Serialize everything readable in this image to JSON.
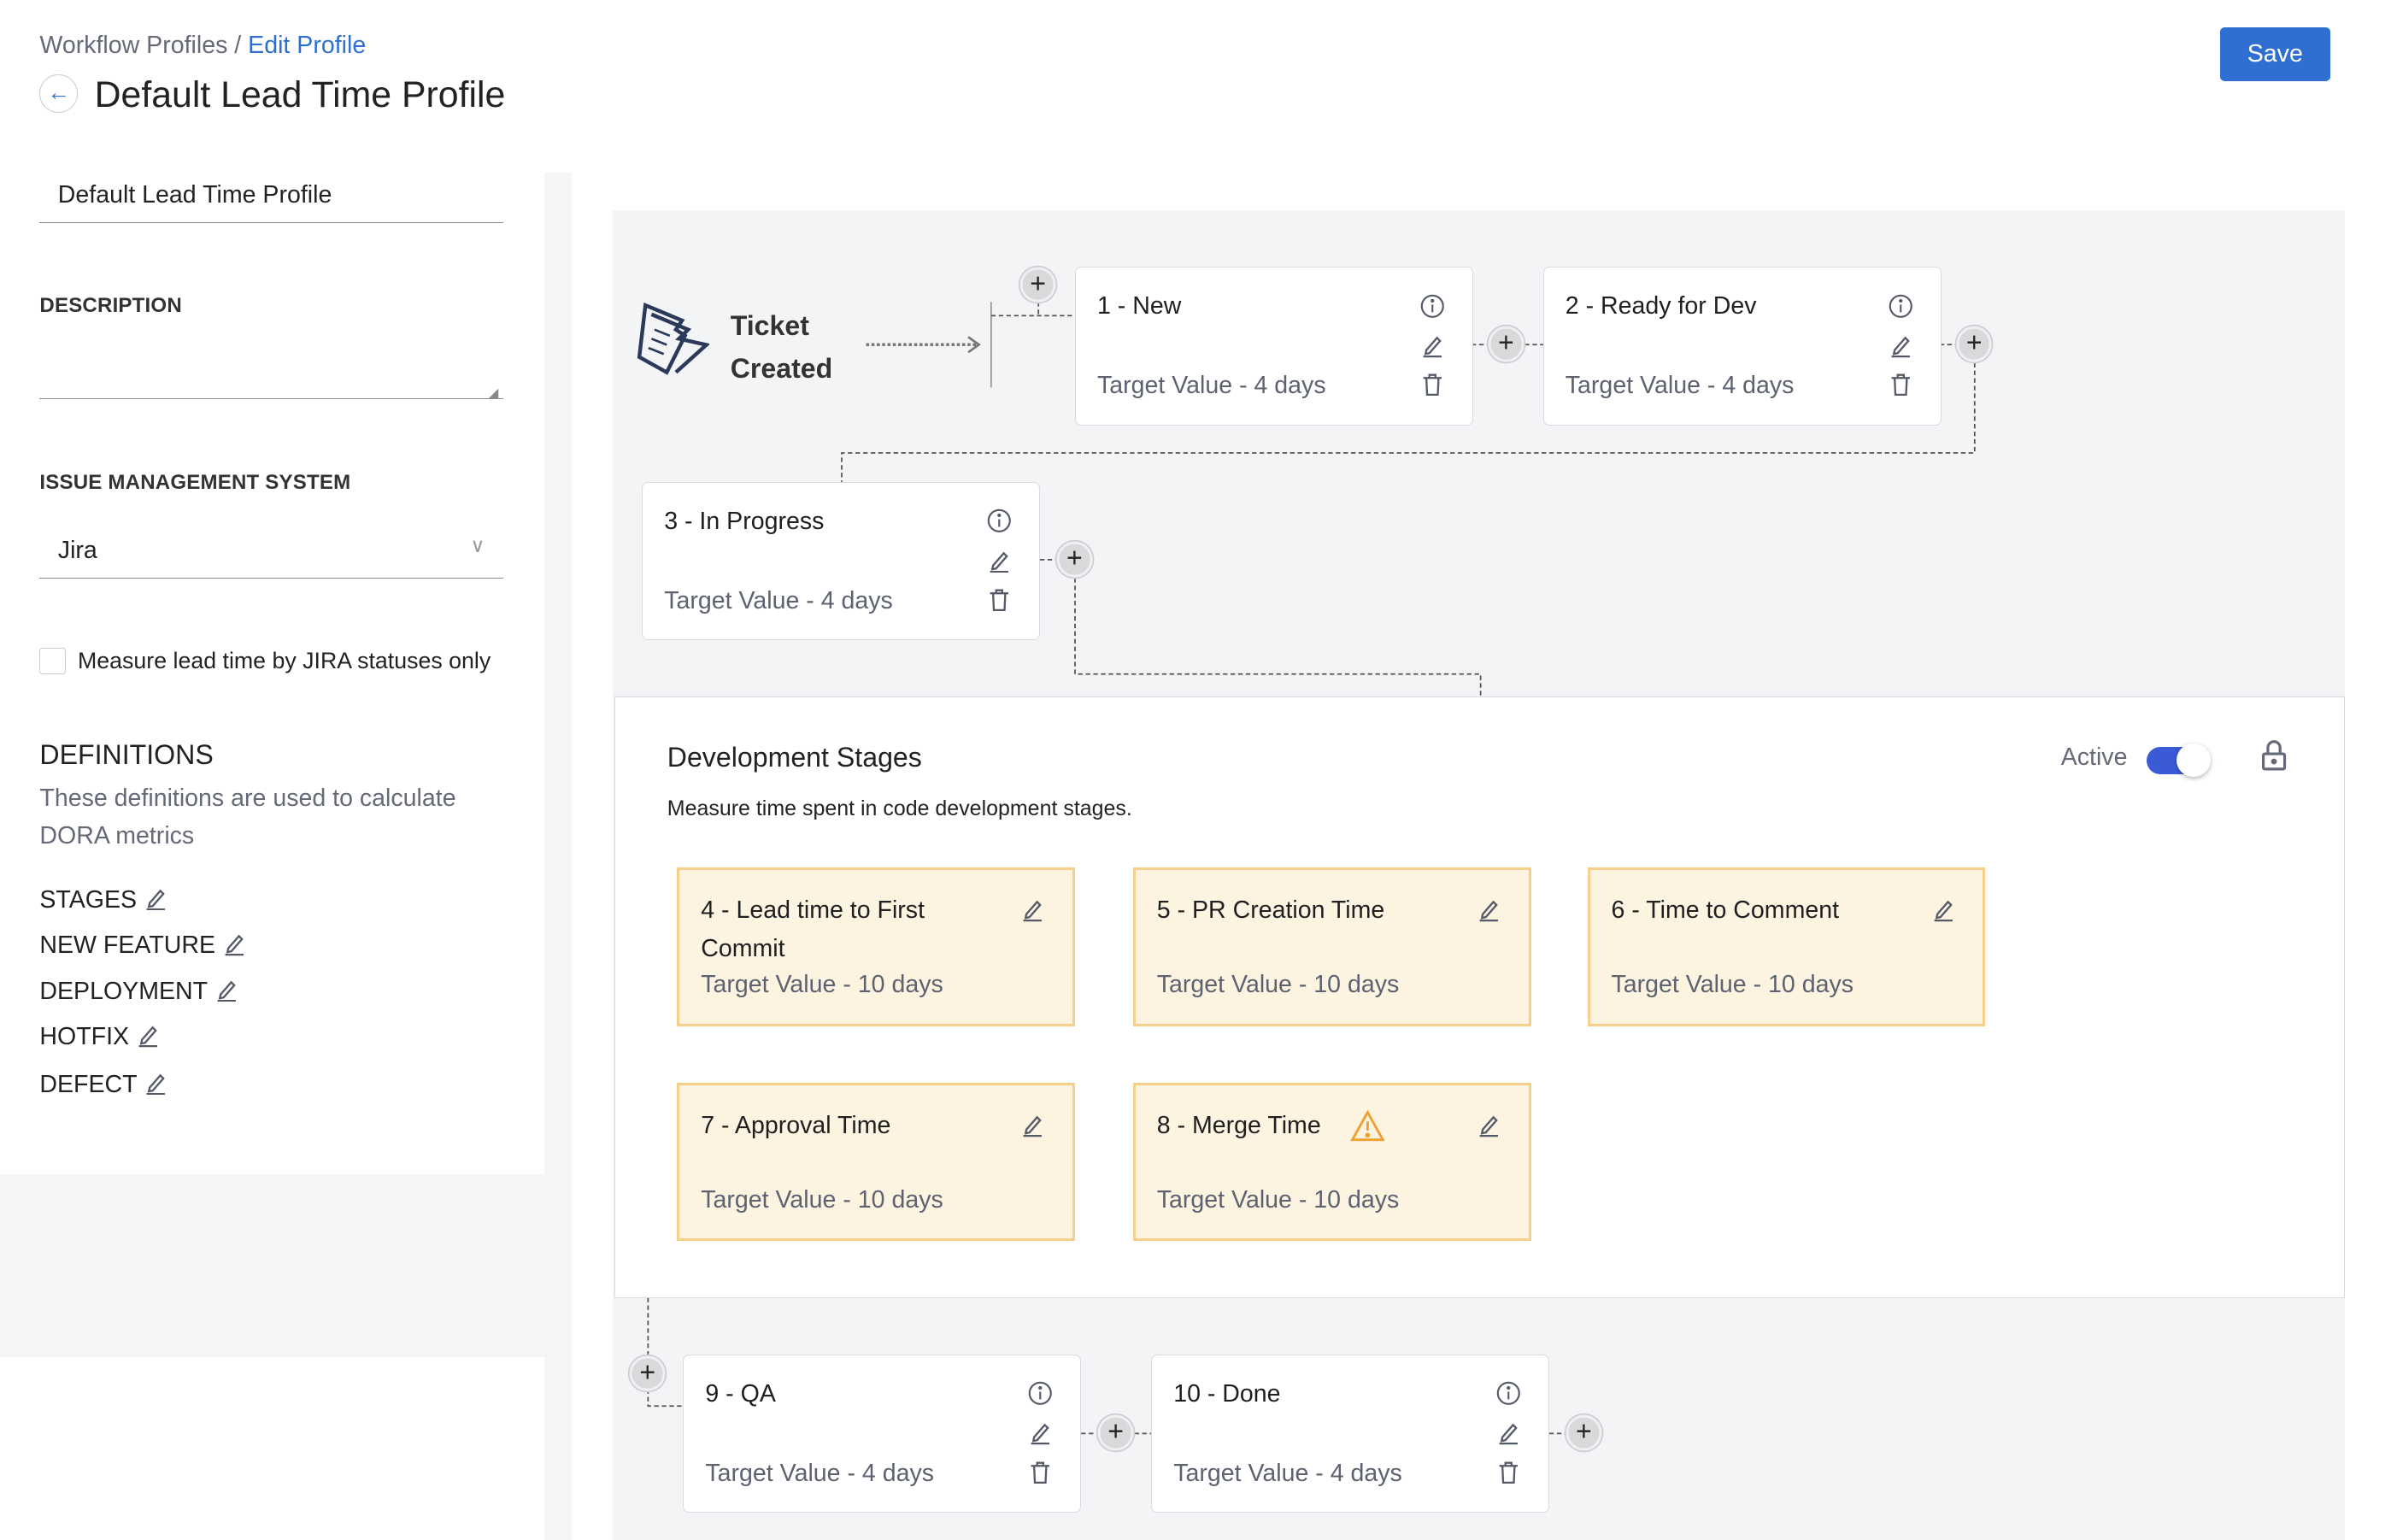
{
  "breadcrumb": {
    "parent": "Workflow Profiles",
    "separator": " / ",
    "current": "Edit Profile"
  },
  "header": {
    "title": "Default Lead Time Profile",
    "save_label": "Save"
  },
  "form": {
    "name_value": "Default Lead Time Profile",
    "description_label": "DESCRIPTION",
    "description_value": "",
    "ims_label": "ISSUE MANAGEMENT SYSTEM",
    "ims_value": "Jira",
    "checkbox_label": "Measure lead time by JIRA statuses only",
    "checkbox_checked": false
  },
  "definitions": {
    "title": "DEFINITIONS",
    "description": "These definitions are used to calculate DORA metrics",
    "items": [
      {
        "label": "STAGES"
      },
      {
        "label": "NEW FEATURE"
      },
      {
        "label": "DEPLOYMENT"
      },
      {
        "label": "HOTFIX"
      },
      {
        "label": "DEFECT"
      }
    ]
  },
  "canvas": {
    "start_label_1": "Ticket",
    "start_label_2": "Created",
    "stages": [
      {
        "title": "1 - New",
        "target": "Target Value - 4 days"
      },
      {
        "title": "2 - Ready for Dev",
        "target": "Target Value - 4 days"
      },
      {
        "title": "3 - In Progress",
        "target": "Target Value - 4 days"
      },
      {
        "title": "9 - QA",
        "target": "Target Value - 4 days"
      },
      {
        "title": "10 - Done",
        "target": "Target Value - 4 days"
      }
    ],
    "dev": {
      "title": "Development Stages",
      "subtitle": "Measure time spent in code development stages.",
      "active_label": "Active",
      "active": true,
      "stages": [
        {
          "title": "4 - Lead time to First Commit",
          "target": "Target Value - 10 days"
        },
        {
          "title": "5 - PR Creation Time",
          "target": "Target Value - 10 days"
        },
        {
          "title": "6 - Time to Comment",
          "target": "Target Value - 10 days"
        },
        {
          "title": "7 - Approval Time",
          "target": "Target Value - 10 days"
        },
        {
          "title": "8 - Merge Time",
          "target": "Target Value - 10 days",
          "warning": true
        }
      ]
    }
  },
  "colors": {
    "accent": "#2f6fd1",
    "toggle": "#3b5bd6",
    "dev_card_bg": "#fdf3e1",
    "dev_card_border": "#f6cf8a",
    "warning": "#f0a030"
  }
}
